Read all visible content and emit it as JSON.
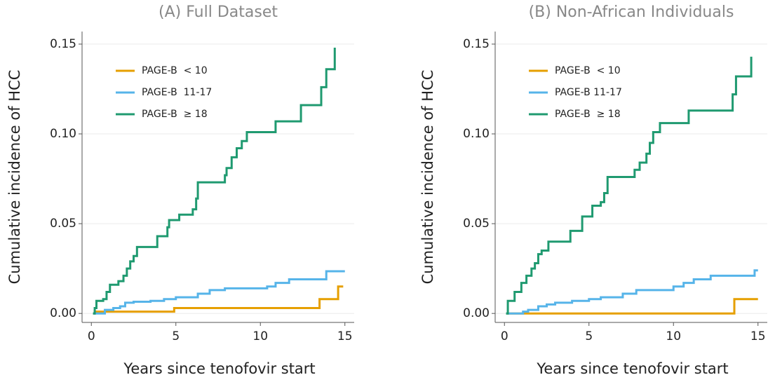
{
  "chart_data": [
    {
      "type": "line",
      "step": true,
      "title": "(A) Full Dataset",
      "xlabel": "Years since tenofovir start",
      "ylabel": "Cumulative incidence of HCC",
      "xlim": [
        -0.55,
        15.55
      ],
      "ylim": [
        -0.005,
        0.157
      ],
      "xticks": [
        0,
        5,
        10,
        15
      ],
      "yticks": [
        {
          "value": 0,
          "label": "0.00"
        },
        {
          "value": 0.05,
          "label": "0.05"
        },
        {
          "value": 0.1,
          "label": "0.10"
        },
        {
          "value": 0.15,
          "label": "0.15"
        }
      ],
      "grid": true,
      "legend": "top-left",
      "series": [
        {
          "name": "PAGE-B  < 10",
          "color": "#E69F00",
          "x": [
            0.1,
            0.2,
            4.9,
            13.5,
            14.6,
            14.9
          ],
          "values": [
            0,
            0.001,
            0.003,
            0.008,
            0.015,
            0.015
          ]
        },
        {
          "name": "PAGE-B  11-17",
          "color": "#56B4E9",
          "x": [
            0.1,
            0.8,
            1.3,
            1.7,
            2.0,
            2.5,
            3.5,
            4.3,
            5.0,
            6.3,
            7.0,
            7.9,
            10.4,
            10.9,
            11.7,
            13.9,
            15.0
          ],
          "values": [
            0,
            0.002,
            0.003,
            0.004,
            0.006,
            0.0065,
            0.007,
            0.008,
            0.009,
            0.011,
            0.013,
            0.014,
            0.015,
            0.017,
            0.019,
            0.0235,
            0.0235
          ]
        },
        {
          "name": "PAGE-B  ≥ 18",
          "color": "#1F9A70",
          "x": [
            0.1,
            0.2,
            0.3,
            0.7,
            0.9,
            1.1,
            1.6,
            1.9,
            2.1,
            2.3,
            2.5,
            2.7,
            3.9,
            4.5,
            4.6,
            5.2,
            6.0,
            6.2,
            6.3,
            7.9,
            8.0,
            8.3,
            8.6,
            8.9,
            9.2,
            10.9,
            12.4,
            13.6,
            13.9,
            14.4
          ],
          "values": [
            0,
            0.003,
            0.007,
            0.008,
            0.012,
            0.016,
            0.018,
            0.021,
            0.025,
            0.029,
            0.032,
            0.037,
            0.043,
            0.048,
            0.052,
            0.055,
            0.058,
            0.064,
            0.073,
            0.077,
            0.081,
            0.087,
            0.092,
            0.096,
            0.101,
            0.107,
            0.116,
            0.126,
            0.136,
            0.148
          ]
        }
      ]
    },
    {
      "type": "line",
      "step": true,
      "title": "(B) Non-African Individuals",
      "xlabel": "Years since tenofovir start",
      "ylabel": "Cumulative incidence of HCC",
      "xlim": [
        -0.55,
        15.55
      ],
      "ylim": [
        -0.005,
        0.157
      ],
      "xticks": [
        0,
        5,
        10,
        15
      ],
      "yticks": [
        {
          "value": 0,
          "label": "0.00"
        },
        {
          "value": 0.05,
          "label": "0.05"
        },
        {
          "value": 0.1,
          "label": "0.10"
        },
        {
          "value": 0.15,
          "label": "0.15"
        }
      ],
      "grid": true,
      "legend": "top-left",
      "series": [
        {
          "name": "PAGE-B  < 10",
          "color": "#E69F00",
          "x": [
            0.1,
            13.6,
            15.0
          ],
          "values": [
            0,
            0.008,
            0.008
          ]
        },
        {
          "name": "PAGE-B 11-17",
          "color": "#56B4E9",
          "x": [
            0.1,
            1.1,
            1.4,
            2.0,
            2.5,
            3.0,
            4.0,
            5.0,
            5.7,
            7.0,
            7.8,
            10.0,
            10.6,
            11.2,
            12.2,
            14.8,
            15.0
          ],
          "values": [
            0,
            0.001,
            0.002,
            0.004,
            0.005,
            0.006,
            0.007,
            0.008,
            0.009,
            0.011,
            0.013,
            0.015,
            0.017,
            0.019,
            0.021,
            0.024,
            0.024
          ]
        },
        {
          "name": "PAGE-B  ≥ 18",
          "color": "#1F9A70",
          "x": [
            0.1,
            0.2,
            0.6,
            1.0,
            1.3,
            1.6,
            1.8,
            2.0,
            2.2,
            2.6,
            3.9,
            4.6,
            5.2,
            5.7,
            5.9,
            6.1,
            7.7,
            8.0,
            8.4,
            8.6,
            8.8,
            9.2,
            10.9,
            13.5,
            13.7,
            14.6
          ],
          "values": [
            0,
            0.007,
            0.012,
            0.017,
            0.021,
            0.025,
            0.028,
            0.033,
            0.035,
            0.04,
            0.046,
            0.054,
            0.06,
            0.062,
            0.067,
            0.076,
            0.08,
            0.084,
            0.089,
            0.095,
            0.101,
            0.106,
            0.113,
            0.122,
            0.132,
            0.143
          ]
        }
      ]
    }
  ]
}
